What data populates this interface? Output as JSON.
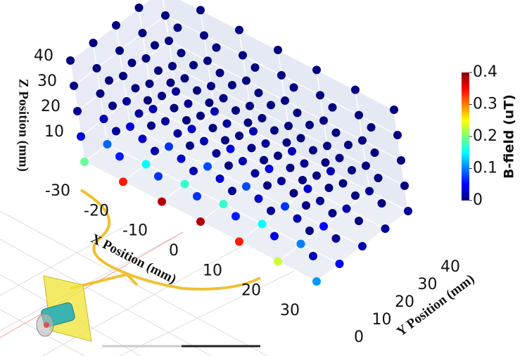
{
  "chart_data": {
    "type": "scatter3d",
    "xlabel": "X Position (mm)",
    "ylabel": "Y Position (mm)",
    "zlabel": "Z Position (mm)",
    "colorbar_label": "B-field (uT)",
    "colormap": "jet",
    "x": [
      -30,
      -20,
      -10,
      0,
      10,
      20,
      30
    ],
    "y": [
      0,
      10,
      20,
      30,
      40
    ],
    "z": [
      0,
      10,
      20,
      30,
      40
    ],
    "values": [
      [
        [
          0.19,
          0.04,
          0.01,
          0,
          0
        ],
        [
          0.09,
          0.02,
          0,
          0,
          0
        ],
        [
          0.04,
          0.01,
          0,
          0,
          0
        ],
        [
          0.02,
          0,
          0,
          0,
          0
        ],
        [
          0.01,
          0,
          0,
          0,
          0
        ]
      ],
      [
        [
          0.34,
          0.06,
          0.01,
          0,
          0
        ],
        [
          0.15,
          0.03,
          0.01,
          0,
          0
        ],
        [
          0.07,
          0.01,
          0,
          0,
          0
        ],
        [
          0.03,
          0.01,
          0,
          0,
          0
        ],
        [
          0.02,
          0,
          0,
          0,
          0
        ]
      ],
      [
        [
          0.38,
          0.07,
          0.02,
          0,
          0
        ],
        [
          0.17,
          0.03,
          0.01,
          0,
          0
        ],
        [
          0.08,
          0.02,
          0,
          0,
          0
        ],
        [
          0.04,
          0.01,
          0,
          0,
          0
        ],
        [
          0.02,
          0,
          0,
          0,
          0
        ]
      ],
      [
        [
          0.38,
          0.07,
          0.02,
          0,
          0
        ],
        [
          0.17,
          0.03,
          0.01,
          0,
          0
        ],
        [
          0.08,
          0.02,
          0,
          0,
          0
        ],
        [
          0.04,
          0.01,
          0,
          0,
          0
        ],
        [
          0.02,
          0,
          0,
          0,
          0
        ]
      ],
      [
        [
          0.34,
          0.06,
          0.01,
          0,
          0
        ],
        [
          0.15,
          0.03,
          0.01,
          0,
          0
        ],
        [
          0.07,
          0.01,
          0,
          0,
          0
        ],
        [
          0.03,
          0.01,
          0,
          0,
          0
        ],
        [
          0.02,
          0,
          0,
          0,
          0
        ]
      ],
      [
        [
          0.23,
          0.04,
          0.01,
          0,
          0
        ],
        [
          0.1,
          0.02,
          0,
          0,
          0
        ],
        [
          0.05,
          0.01,
          0,
          0,
          0
        ],
        [
          0.02,
          0,
          0,
          0,
          0
        ],
        [
          0.01,
          0,
          0,
          0,
          0
        ]
      ],
      [
        [
          0.11,
          0.02,
          0,
          0,
          0
        ],
        [
          0.05,
          0.01,
          0,
          0,
          0
        ],
        [
          0.02,
          0,
          0,
          0,
          0
        ],
        [
          0.01,
          0,
          0,
          0,
          0
        ],
        [
          0.01,
          0,
          0,
          0,
          0
        ]
      ]
    ],
    "xlim": [
      -30,
      30
    ],
    "xticks": [
      -30,
      -20,
      -10,
      0,
      10,
      20,
      30
    ],
    "ylim": [
      0,
      40
    ],
    "yticks": [
      0,
      10,
      20,
      30,
      40
    ],
    "zlim": [
      0,
      40
    ],
    "zticks": [
      10,
      20,
      30,
      40
    ],
    "clim": [
      0,
      0.4
    ],
    "cticks": [
      0,
      0.1,
      0.2,
      0.3,
      0.4
    ],
    "grid": true
  }
}
